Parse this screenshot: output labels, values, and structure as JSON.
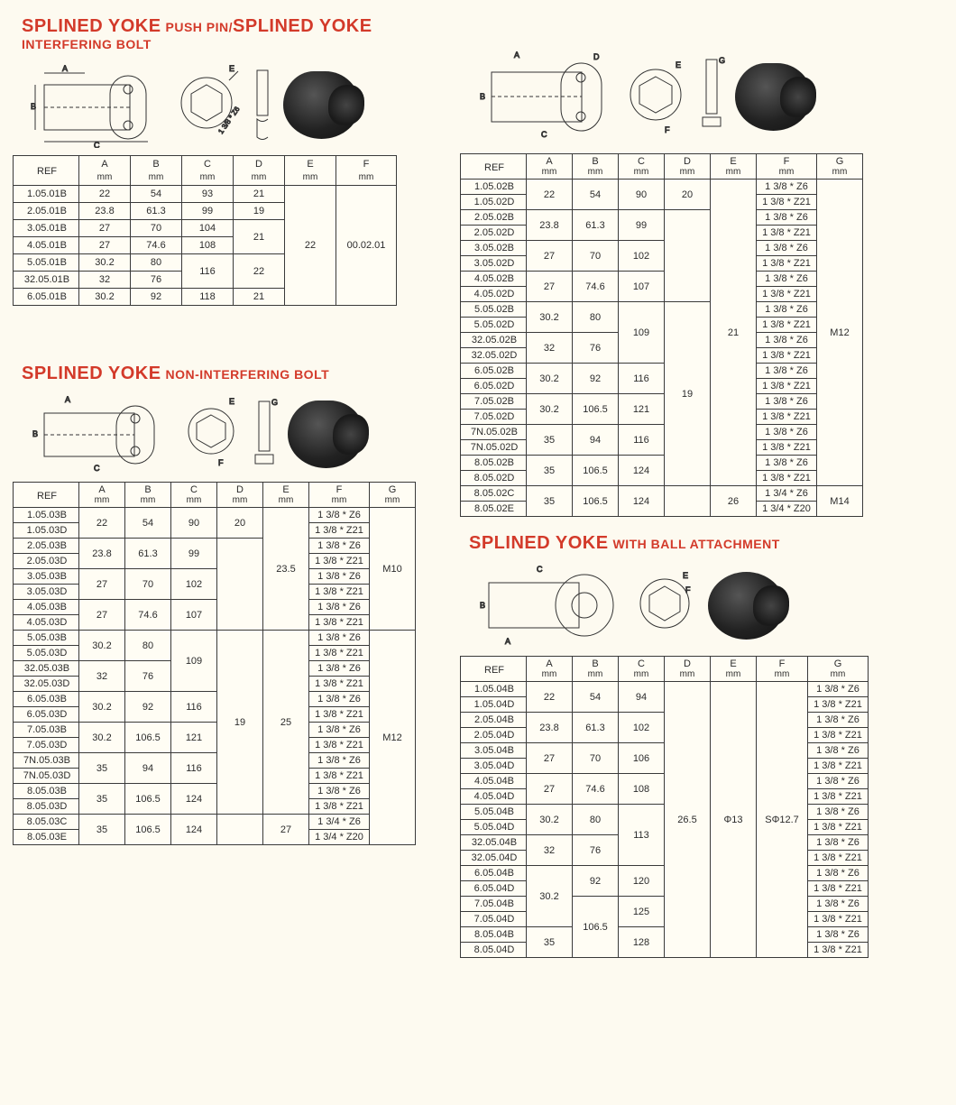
{
  "titles": {
    "t1a_big": "SPLINED YOKE",
    "t1a_small": "PUSH PIN/",
    "t1b_big": "SPLINED YOKE",
    "t1b_small": "INTERFERING BOLT",
    "t2_big": "SPLINED YOKE",
    "t2_small": "NON-INTERFERING BOLT",
    "t3_big": "SPLINED YOKE",
    "t3_small": "WITH BALL ATTACHMENT"
  },
  "unit": "mm",
  "hdr": {
    "ref": "REF",
    "A": "A",
    "B": "B",
    "C": "C",
    "D": "D",
    "E": "E",
    "F": "F",
    "G": "G"
  },
  "table1": {
    "rows": [
      {
        "ref": "1.05.01B",
        "A": "22",
        "B": "54",
        "C": "93",
        "D": "21"
      },
      {
        "ref": "2.05.01B",
        "A": "23.8",
        "B": "61.3",
        "C": "99",
        "D": "19"
      },
      {
        "ref": "3.05.01B",
        "A": "27",
        "B": "70",
        "C": "104",
        "D_span": 2,
        "D": "21"
      },
      {
        "ref": "4.05.01B",
        "A": "27",
        "B": "74.6",
        "C": "108"
      },
      {
        "ref": "5.05.01B",
        "A": "30.2",
        "B": "80",
        "C_span": 2,
        "C": "116",
        "D_span": 2,
        "D": "22"
      },
      {
        "ref": "32.05.01B",
        "A": "32",
        "B": "76"
      },
      {
        "ref": "6.05.01B",
        "A": "30.2",
        "B": "92",
        "C": "118",
        "D": "21"
      }
    ],
    "E": "22",
    "F": "00.02.01"
  },
  "table2": {
    "E": "21",
    "G": "M12",
    "rows": [
      {
        "ref": "1.05.02B",
        "A": "22",
        "B": "54",
        "C": "90",
        "D": "20",
        "F": "1 3/8 * Z6"
      },
      {
        "ref": "1.05.02D",
        "F": "1 3/8 * Z21"
      },
      {
        "ref": "2.05.02B",
        "A": "23.8",
        "B": "61.3",
        "C": "99",
        "F": "1 3/8 * Z6"
      },
      {
        "ref": "2.05.02D",
        "F": "1 3/8 * Z21"
      },
      {
        "ref": "3.05.02B",
        "A": "27",
        "B": "70",
        "C": "102",
        "F": "1 3/8 * Z6"
      },
      {
        "ref": "3.05.02D",
        "F": "1 3/8 * Z21"
      },
      {
        "ref": "4.05.02B",
        "A": "27",
        "B": "74.6",
        "C": "107",
        "F": "1 3/8 * Z6"
      },
      {
        "ref": "4.05.02D",
        "F": "1 3/8 * Z21"
      },
      {
        "ref": "5.05.02B",
        "A": "30.2",
        "B": "80",
        "F": "1 3/8 * Z6"
      },
      {
        "ref": "5.05.02D",
        "F": "1 3/8 * Z21"
      },
      {
        "ref": "32.05.02B",
        "A": "32",
        "B": "76",
        "C": "109",
        "F": "1 3/8 * Z6"
      },
      {
        "ref": "32.05.02D",
        "F": "1 3/8 * Z21"
      },
      {
        "ref": "6.05.02B",
        "A": "30.2",
        "B": "92",
        "C": "116",
        "F": "1 3/8 * Z6"
      },
      {
        "ref": "6.05.02D",
        "F": "1 3/8 * Z21"
      },
      {
        "ref": "7.05.02B",
        "A": "30.2",
        "B": "106.5",
        "C": "121",
        "F": "1 3/8 * Z6"
      },
      {
        "ref": "7.05.02D",
        "F": "1 3/8 * Z21"
      },
      {
        "ref": "7N.05.02B",
        "A": "35",
        "B": "94",
        "C": "116",
        "F": "1 3/8 * Z6"
      },
      {
        "ref": "7N.05.02D",
        "F": "1 3/8 * Z21"
      },
      {
        "ref": "8.05.02B",
        "A": "35",
        "B": "106.5",
        "C": "124",
        "F": "1 3/8 * Z6"
      },
      {
        "ref": "8.05.02D",
        "F": "1 3/8 * Z21"
      }
    ],
    "last": [
      {
        "ref": "8.05.02C",
        "A": "35",
        "B": "106.5",
        "C": "124",
        "E": "26",
        "F": "1 3/4 * Z6",
        "G": "M14"
      },
      {
        "ref": "8.05.02E",
        "F": "1 3/4 * Z20"
      }
    ],
    "D19": "19"
  },
  "table3": {
    "rows": [
      {
        "ref": "1.05.03B",
        "A": "22",
        "B": "54",
        "C": "90",
        "D": "20",
        "F": "1 3/8 * Z6"
      },
      {
        "ref": "1.05.03D",
        "F": "1 3/8 * Z21"
      },
      {
        "ref": "2.05.03B",
        "A": "23.8",
        "B": "61.3",
        "C": "99",
        "F": "1 3/8 * Z6"
      },
      {
        "ref": "2.05.03D",
        "F": "1 3/8 * Z21"
      },
      {
        "ref": "3.05.03B",
        "A": "27",
        "B": "70",
        "C": "102",
        "F": "1 3/8 * Z6"
      },
      {
        "ref": "3.05.03D",
        "F": "1 3/8 * Z21"
      },
      {
        "ref": "4.05.03B",
        "A": "27",
        "B": "74.6",
        "C": "107",
        "F": "1 3/8 * Z6"
      },
      {
        "ref": "4.05.03D",
        "F": "1 3/8 * Z21"
      },
      {
        "ref": "5.05.03B",
        "A": "30.2",
        "B": "80",
        "F": "1 3/8 * Z6"
      },
      {
        "ref": "5.05.03D",
        "F": "1 3/8 * Z21"
      },
      {
        "ref": "32.05.03B",
        "A": "32",
        "B": "76",
        "C": "109",
        "F": "1 3/8 * Z6"
      },
      {
        "ref": "32.05.03D",
        "F": "1 3/8 * Z21"
      },
      {
        "ref": "6.05.03B",
        "A": "30.2",
        "B": "92",
        "C": "116",
        "F": "1 3/8 * Z6"
      },
      {
        "ref": "6.05.03D",
        "F": "1 3/8 * Z21"
      },
      {
        "ref": "7.05.03B",
        "A": "30.2",
        "B": "106.5",
        "C": "121",
        "F": "1 3/8 * Z6"
      },
      {
        "ref": "7.05.03D",
        "F": "1 3/8 * Z21"
      },
      {
        "ref": "7N.05.03B",
        "A": "35",
        "B": "94",
        "C": "116",
        "F": "1 3/8 * Z6"
      },
      {
        "ref": "7N.05.03D",
        "F": "1 3/8 * Z21"
      },
      {
        "ref": "8.05.03B",
        "A": "35",
        "B": "106.5",
        "C": "124",
        "F": "1 3/8 * Z6"
      },
      {
        "ref": "8.05.03D",
        "F": "1 3/8 * Z21"
      }
    ],
    "last": [
      {
        "ref": "8.05.03C",
        "A": "35",
        "B": "106.5",
        "C": "124",
        "E": "27",
        "F": "1 3/4 * Z6"
      },
      {
        "ref": "8.05.03E",
        "F": "1 3/4 * Z20"
      }
    ],
    "E1": "23.5",
    "E2": "25",
    "G1": "M10",
    "G2": "M12",
    "D19": "19"
  },
  "table4": {
    "D": "26.5",
    "E": "Φ13",
    "F": "SΦ12.7",
    "rows": [
      {
        "ref": "1.05.04B",
        "A": "22",
        "B": "54",
        "C": "94",
        "G": "1 3/8 * Z6"
      },
      {
        "ref": "1.05.04D",
        "G": "1 3/8 * Z21"
      },
      {
        "ref": "2.05.04B",
        "A": "23.8",
        "B": "61.3",
        "C": "102",
        "G": "1 3/8 * Z6"
      },
      {
        "ref": "2.05.04D",
        "G": "1 3/8 * Z21"
      },
      {
        "ref": "3.05.04B",
        "A": "27",
        "B": "70",
        "C": "106",
        "G": "1 3/8 * Z6"
      },
      {
        "ref": "3.05.04D",
        "G": "1 3/8 * Z21"
      },
      {
        "ref": "4.05.04B",
        "A": "27",
        "B": "74.6",
        "C": "108",
        "G": "1 3/8 * Z6"
      },
      {
        "ref": "4.05.04D",
        "G": "1 3/8 * Z21"
      },
      {
        "ref": "5.05.04B",
        "A": "30.2",
        "B": "80",
        "G": "1 3/8 * Z6"
      },
      {
        "ref": "5.05.04D",
        "G": "1 3/8 * Z21"
      },
      {
        "ref": "32.05.04B",
        "A": "32",
        "B": "76",
        "C": "113",
        "G": "1 3/8 * Z6"
      },
      {
        "ref": "32.05.04D",
        "G": "1 3/8 * Z21"
      },
      {
        "ref": "6.05.04B",
        "B": "92",
        "C": "120",
        "G": "1 3/8 * Z6"
      },
      {
        "ref": "6.05.04D",
        "G": "1 3/8 * Z21"
      },
      {
        "ref": "7.05.04B",
        "C": "125",
        "G": "1 3/8 * Z6"
      },
      {
        "ref": "7.05.04D",
        "G": "1 3/8 * Z21"
      },
      {
        "ref": "8.05.04B",
        "A": "35",
        "C": "128",
        "G": "1 3/8 * Z6"
      },
      {
        "ref": "8.05.04D",
        "G": "1 3/8 * Z21"
      }
    ],
    "A302": "30.2",
    "B1065": "106.5"
  }
}
